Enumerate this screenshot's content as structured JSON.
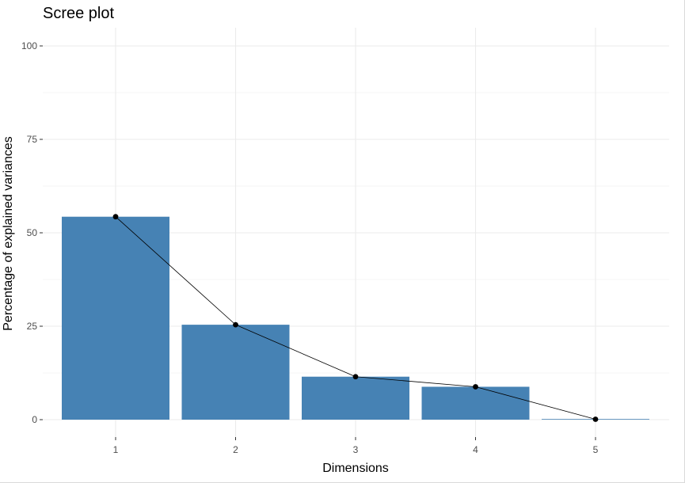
{
  "chart_data": {
    "type": "bar",
    "title": "Scree plot",
    "xlabel": "Dimensions",
    "ylabel": "Percentage of explained variances",
    "categories": [
      "1",
      "2",
      "3",
      "4",
      "5"
    ],
    "values": [
      54.3,
      25.4,
      11.5,
      8.8,
      0.1
    ],
    "line_overlay": true,
    "ylim": [
      0,
      100
    ],
    "yticks": [
      0,
      25,
      50,
      75,
      100
    ],
    "grid": true,
    "legend": "none",
    "colors": {
      "bar": "#4682B4",
      "line": "#000000",
      "point": "#000000",
      "grid": "#ebebeb",
      "tick_text": "#4d4d4d",
      "text": "#000000"
    }
  }
}
